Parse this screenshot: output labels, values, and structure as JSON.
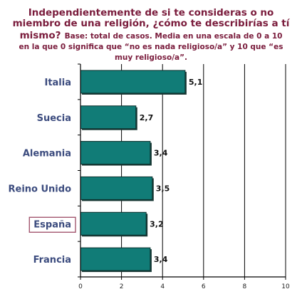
{
  "chart_data": {
    "type": "bar",
    "orientation": "horizontal",
    "title_lines": [
      "Independientemente de si te consideras o no",
      "miembro de una religión, ¿cómo te describirías a tí",
      "mismo?"
    ],
    "note_inline": "Base: total de casos. Media en una escala de 0 a 10",
    "note_lines": [
      "en la que 0 significa que “no es nada religioso/a” y 10 que “es",
      "muy religioso/a”."
    ],
    "categories": [
      "Italia",
      "Suecia",
      "Alemania",
      "Reino Unido",
      "España",
      "Francia"
    ],
    "values": [
      5.1,
      2.7,
      3.4,
      3.5,
      3.2,
      3.4
    ],
    "value_labels": [
      "5,1",
      "2,7",
      "3,4",
      "3,5",
      "3,2",
      "3,4"
    ],
    "highlighted_category": "España",
    "xlim": [
      0,
      10
    ],
    "xticks": [
      0,
      2,
      4,
      6,
      8,
      10
    ],
    "grid": true,
    "legend": "none",
    "colors": {
      "bar": "#117c77",
      "bar_edge": "#0a2f2c",
      "title": "#7a1c3c",
      "category_label": "#3b4b7e",
      "highlight_box": "#9c4a64",
      "grid": "#000000"
    }
  }
}
